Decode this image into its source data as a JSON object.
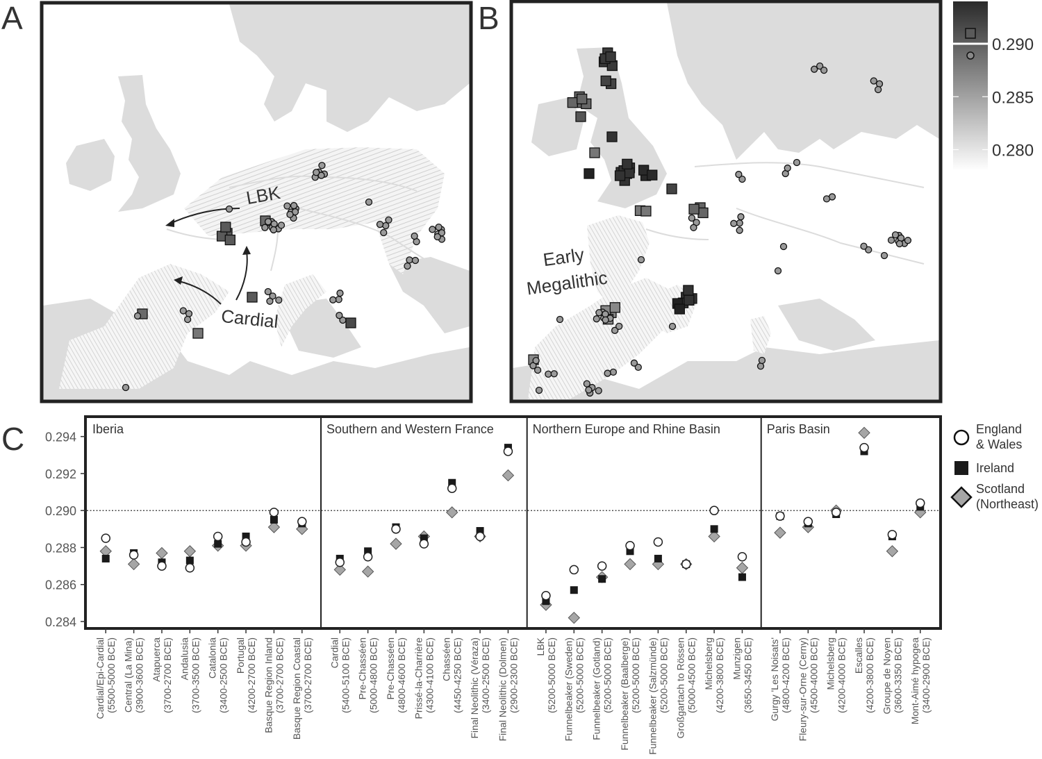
{
  "panel_labels": {
    "a": "A",
    "b": "B",
    "c": "C"
  },
  "map_a": {
    "labels": [
      "LBK",
      "Cardial"
    ]
  },
  "map_b": {
    "labels": [
      "Early",
      "Megalithic"
    ]
  },
  "colorbar": {
    "ticks": [
      "0.290",
      "0.285",
      "0.280"
    ],
    "values": [
      0.29,
      0.285,
      0.28
    ],
    "range": [
      0.278,
      0.294
    ],
    "colors": {
      "high": "#2a2a2a",
      "low": "#ffffff"
    }
  },
  "chart_data": {
    "type": "scatter",
    "ylim": [
      0.2837,
      0.295
    ],
    "yticks": [
      0.284,
      0.286,
      0.288,
      0.29,
      0.292,
      0.294
    ],
    "ytick_labels": [
      "0.284",
      "0.286",
      "0.288",
      "0.290",
      "0.292",
      "0.294"
    ],
    "reference_line": 0.29,
    "legend": {
      "placement": "right",
      "entries": [
        {
          "label_lines": [
            "England",
            "& Wales"
          ],
          "marker": "circle",
          "color": "#ffffff"
        },
        {
          "label_lines": [
            "Ireland"
          ],
          "marker": "square",
          "color": "#1a1a1a"
        },
        {
          "label_lines": [
            "Scotland",
            "(Northeast)"
          ],
          "marker": "diamond",
          "color": "#a6a6a6"
        }
      ]
    },
    "facets": [
      {
        "name": "Iberia",
        "categories": [
          {
            "label": "Cardial/Epi-Cardial",
            "period": "(5500-5000 BCE)",
            "england_wales": 0.2885,
            "ireland": 0.2874,
            "scotland_ne": 0.2878
          },
          {
            "label": "Central (La Mina)",
            "period": "(3900-3600 BCE)",
            "england_wales": 0.2876,
            "ireland": 0.2877,
            "scotland_ne": 0.2871
          },
          {
            "label": "Atapuerca",
            "period": "(3700-2700 BCE)",
            "england_wales": 0.287,
            "ireland": 0.2872,
            "scotland_ne": 0.2877
          },
          {
            "label": "Andalusia",
            "period": "(3700-3500 BCE)",
            "england_wales": 0.2869,
            "ireland": 0.2873,
            "scotland_ne": 0.2878
          },
          {
            "label": "Catalonia",
            "period": "(3400-2500 BCE)",
            "england_wales": 0.2886,
            "ireland": 0.2882,
            "scotland_ne": 0.2881
          },
          {
            "label": "Portugal",
            "period": "(4200-2700 BCE)",
            "england_wales": 0.2883,
            "ireland": 0.2886,
            "scotland_ne": 0.2881
          },
          {
            "label": "Basque Region Inland",
            "period": "(3700-2700 BCE)",
            "england_wales": 0.2899,
            "ireland": 0.2895,
            "scotland_ne": 0.2891
          },
          {
            "label": "Basque Region Coastal",
            "period": "(3700-2700 BCE)",
            "england_wales": 0.2894,
            "ireland": 0.2893,
            "scotland_ne": 0.289
          }
        ]
      },
      {
        "name": "Southern and Western France",
        "categories": [
          {
            "label": "Cardial",
            "period": "(5400-5100 BCE)",
            "england_wales": 0.2872,
            "ireland": 0.2874,
            "scotland_ne": 0.2868
          },
          {
            "label": "Pre-Chasséen",
            "period": "(5000-4800 BCE)",
            "england_wales": 0.2875,
            "ireland": 0.2878,
            "scotland_ne": 0.2867
          },
          {
            "label": "Pre-Chasséen",
            "period": "(4800-4600 BCE)",
            "england_wales": 0.289,
            "ireland": 0.2891,
            "scotland_ne": 0.2882
          },
          {
            "label": "Prissé-la-Charrière",
            "period": "(4300-4100 BCE)",
            "england_wales": 0.2882,
            "ireland": 0.2885,
            "scotland_ne": 0.2886
          },
          {
            "label": "Chasséen",
            "period": "(4450-4250 BCE)",
            "england_wales": 0.2912,
            "ireland": 0.2915,
            "scotland_ne": 0.2899
          },
          {
            "label": "Final Neolithic (Véraza)",
            "period": "(3400-2500 BCE)",
            "england_wales": 0.2886,
            "ireland": 0.2889,
            "scotland_ne": 0.2886
          },
          {
            "label": "Final Neolithic (Dolmen)",
            "period": "(2900-2300 BCE)",
            "england_wales": 0.2932,
            "ireland": 0.2934,
            "scotland_ne": 0.2919
          }
        ]
      },
      {
        "name": "Northern Europe and Rhine Basin",
        "categories": [
          {
            "label": "LBK",
            "period": "(5200-5000 BCE)",
            "england_wales": 0.2854,
            "ireland": 0.2851,
            "scotland_ne": 0.2849
          },
          {
            "label": "Funnelbeaker (Sweden)",
            "period": "(5200-5000 BCE)",
            "england_wales": 0.2868,
            "ireland": 0.2857,
            "scotland_ne": 0.2842
          },
          {
            "label": "Funnelbeaker (Gotland)",
            "period": "(5200-5000 BCE)",
            "england_wales": 0.287,
            "ireland": 0.2863,
            "scotland_ne": 0.2864
          },
          {
            "label": "Funnelbeaker (Baalberge)",
            "period": "(5200-5000 BCE)",
            "england_wales": 0.2881,
            "ireland": 0.2878,
            "scotland_ne": 0.2871
          },
          {
            "label": "Funnelbeaker (Salzmünde)",
            "period": "(5200-5000 BCE)",
            "england_wales": 0.2883,
            "ireland": 0.2874,
            "scotland_ne": 0.2871
          },
          {
            "label": "Großgartach to Rössen",
            "period": "(5000-4500 BCE)",
            "england_wales": 0.2871,
            "ireland": 0.2871,
            "scotland_ne": 0.2871
          },
          {
            "label": "Michelsberg",
            "period": "(4200-3800 BCE)",
            "england_wales": 0.29,
            "ireland": 0.289,
            "scotland_ne": 0.2886
          },
          {
            "label": "Munzigen",
            "period": "(3650-3450 BCE)",
            "england_wales": 0.2875,
            "ireland": 0.2864,
            "scotland_ne": 0.2869
          }
        ]
      },
      {
        "name": "Paris Basin",
        "categories": [
          {
            "label": "Gurgy 'Les Noisats'",
            "period": "(4800-4200 BCE)",
            "england_wales": 0.2897,
            "ireland": 0.2897,
            "scotland_ne": 0.2888
          },
          {
            "label": "Fleury-sur-Orne (Cerny)",
            "period": "(4500-4000 BCE)",
            "england_wales": 0.2894,
            "ireland": 0.2893,
            "scotland_ne": 0.2891
          },
          {
            "label": "Michelsberg",
            "period": "(4200-4000 BCE)",
            "england_wales": 0.2899,
            "ireland": 0.2898,
            "scotland_ne": 0.29
          },
          {
            "label": "Escalles",
            "period": "(4200-3800 BCE)",
            "england_wales": 0.2934,
            "ireland": 0.2932,
            "scotland_ne": 0.2942
          },
          {
            "label": "Groupe de Noyen",
            "period": "(3600-3350 BCE)",
            "england_wales": 0.2887,
            "ireland": 0.2886,
            "scotland_ne": 0.2878
          },
          {
            "label": "Mont-Aimé hypogea",
            "period": "(3400-2900 BCE)",
            "england_wales": 0.2904,
            "ireland": 0.2902,
            "scotland_ne": 0.2899
          }
        ]
      }
    ]
  }
}
